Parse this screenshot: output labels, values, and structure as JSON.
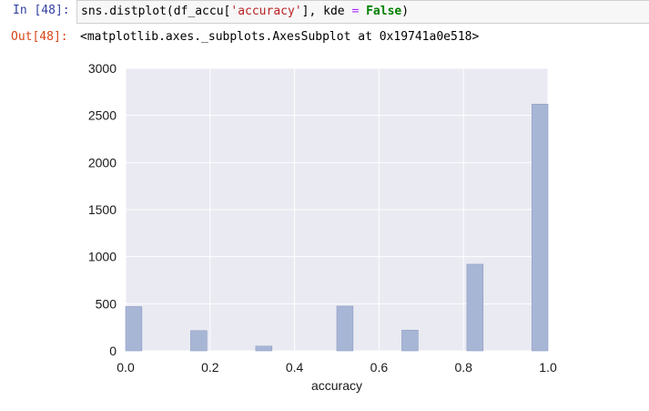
{
  "cell_input": {
    "prompt": "In [48]:",
    "code_prefix": "sns.distplot(df_accu[",
    "code_string": "'accuracy'",
    "code_middle": "], kde ",
    "code_equals": "=",
    "code_space": " ",
    "code_keyword": "False",
    "code_suffix": ")"
  },
  "cell_output": {
    "prompt": "Out[48]:",
    "text": "<matplotlib.axes._subplots.AxesSubplot at 0x19741a0e518>"
  },
  "chart_data": {
    "type": "bar",
    "xlabel": "accuracy",
    "ylabel": "",
    "xlim": [
      0.0,
      1.0
    ],
    "ylim": [
      0,
      3000
    ],
    "xticks": [
      "0.0",
      "0.2",
      "0.4",
      "0.6",
      "0.8",
      "1.0"
    ],
    "yticks": [
      "0",
      "500",
      "1000",
      "1500",
      "2000",
      "2500",
      "3000"
    ],
    "grid": true,
    "bin_width": 0.0385,
    "bars": [
      {
        "x": 0.0,
        "value": 470
      },
      {
        "x": 0.154,
        "value": 215
      },
      {
        "x": 0.308,
        "value": 50
      },
      {
        "x": 0.5,
        "value": 475
      },
      {
        "x": 0.654,
        "value": 220
      },
      {
        "x": 0.808,
        "value": 920
      },
      {
        "x": 0.962,
        "value": 2620
      }
    ],
    "colors": {
      "bar": "#a8b6d6",
      "bar_edge": "#8c9dc3",
      "plot_bg": "#eaeaf2",
      "grid": "#ffffff"
    }
  }
}
